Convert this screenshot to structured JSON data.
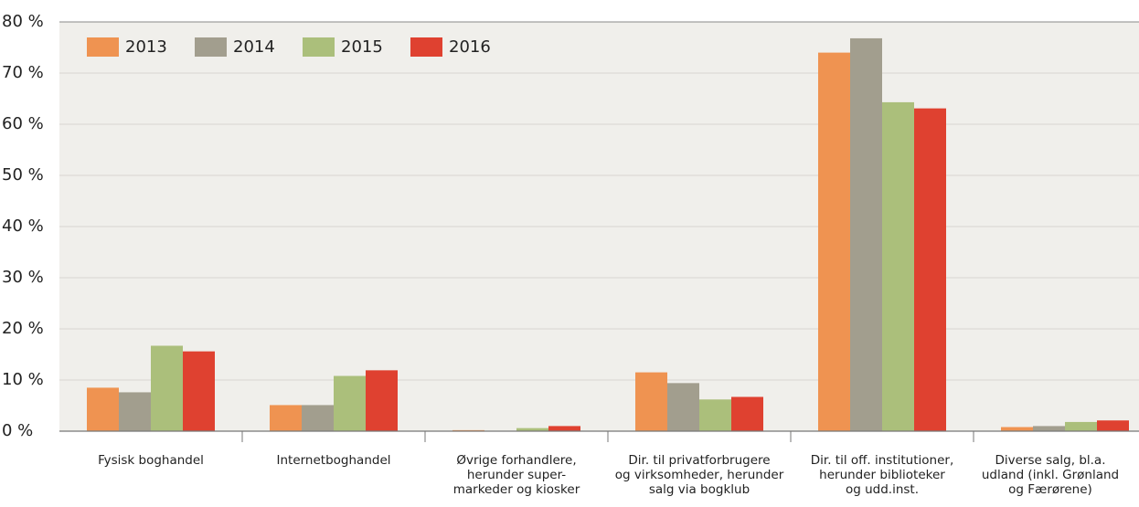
{
  "chart_data": {
    "type": "bar",
    "categories": [
      "Fysisk boghandel",
      "Internetboghandel",
      "Øvrige forhandlere,\nherunder super-\nmarkeder og kiosker",
      "Dir. til privatforbrugere\nog virksomheder, herunder\nsalg via bogklub",
      "Dir. til off. institutioner,\nherunder biblioteker\nog udd.inst.",
      "Diverse salg, bl.a.\nudland (inkl. Grønland\nog Færørene)"
    ],
    "series": [
      {
        "name": "2013",
        "color": "#ef9351",
        "values": [
          8.5,
          5.1,
          0.2,
          11.5,
          74.0,
          0.8
        ]
      },
      {
        "name": "2014",
        "color": "#a29e8e",
        "values": [
          7.6,
          5.1,
          0,
          9.4,
          76.8,
          1.0
        ]
      },
      {
        "name": "2015",
        "color": "#abbf7b",
        "values": [
          16.7,
          10.8,
          0.6,
          6.2,
          64.3,
          1.8
        ]
      },
      {
        "name": "2016",
        "color": "#df4130",
        "values": [
          15.6,
          11.9,
          1.0,
          6.7,
          63.1,
          2.1
        ]
      }
    ],
    "ylim": [
      0,
      80
    ],
    "yticks": [
      {
        "value": 0,
        "label": "0 %"
      },
      {
        "value": 10,
        "label": "10 %"
      },
      {
        "value": 20,
        "label": "20 %"
      },
      {
        "value": 30,
        "label": "30 %"
      },
      {
        "value": 40,
        "label": "40 %"
      },
      {
        "value": 50,
        "label": "50 %"
      },
      {
        "value": 60,
        "label": "60 %"
      },
      {
        "value": 70,
        "label": "70 %"
      },
      {
        "value": 80,
        "label": "80 %"
      }
    ],
    "grid": true,
    "legend": "top-left"
  }
}
